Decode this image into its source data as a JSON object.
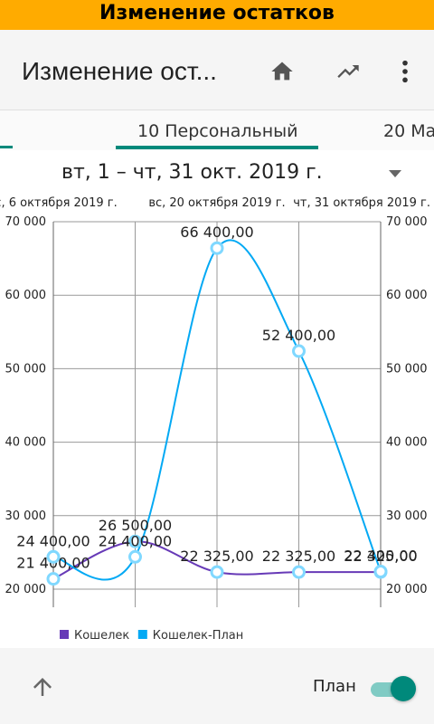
{
  "titlebar": {
    "title": "Изменение остатков"
  },
  "appbar": {
    "title": "Изменение ост...",
    "icons": [
      "home-icon",
      "trending-up-icon",
      "more-vert-icon"
    ]
  },
  "tabs": [
    {
      "label": "10 Персональный",
      "selected": true
    },
    {
      "label": "20 Ма"
    }
  ],
  "period": {
    "label": "вт, 1 – чт, 31 окт. 2019 г."
  },
  "bottom": {
    "plan_label": "План",
    "plan_enabled": true,
    "accent": "#00897b"
  },
  "chart_data": {
    "type": "line",
    "x_labels": [
      "с, 6 октября 2019 г.",
      "вс, 20 октября 2019 г.",
      "чт, 31 октября 2019 г."
    ],
    "x": [
      "2019-10-01",
      "2019-10-08",
      "2019-10-15",
      "2019-10-22",
      "2019-10-29"
    ],
    "ylim": [
      20000,
      70000
    ],
    "yticks": [
      "20 000",
      "30 000",
      "40 000",
      "50 000",
      "60 000",
      "70 000"
    ],
    "legend_position": "bottom-left",
    "grid": true,
    "series": [
      {
        "name": "Кошелек",
        "color": "#673ab7",
        "values": [
          21400,
          26500,
          22325,
          22325,
          22325
        ],
        "labels": [
          "21 400,00",
          "26 500,00",
          "22 325,00",
          "22 325,00",
          "22 325,00"
        ]
      },
      {
        "name": "Кошелек-План",
        "color": "#03a9f4",
        "values": [
          24400,
          24400,
          66400,
          52400,
          22400
        ],
        "labels": [
          "24 400,00",
          "24 400,00",
          "66 400,00",
          "52 400,00",
          "22 400,00"
        ]
      }
    ]
  }
}
